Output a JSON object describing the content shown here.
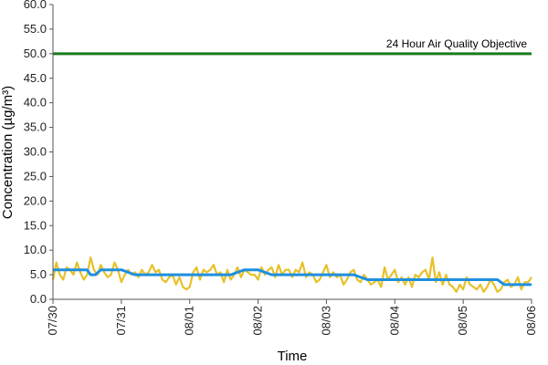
{
  "chart_data": {
    "type": "line",
    "title": "",
    "xlabel": "Time",
    "ylabel": "Concentration (µg/m³)",
    "ylim": [
      0,
      60
    ],
    "yticks": [
      "0.0",
      "5.0",
      "10.0",
      "15.0",
      "20.0",
      "25.0",
      "30.0",
      "35.0",
      "40.0",
      "45.0",
      "50.0",
      "55.0",
      "60.0"
    ],
    "xticks": [
      "07/30",
      "07/31",
      "08/01",
      "08/02",
      "08/03",
      "08/04",
      "08/05",
      "08/06"
    ],
    "xlim_days": [
      0,
      7
    ],
    "grid": false,
    "legend": "none",
    "annotation": {
      "text": "24 Hour Air Quality Objective"
    },
    "objective": {
      "value": 50.0,
      "color": "#1a7a1a"
    },
    "series": [
      {
        "color": "#e8c029",
        "x": [
          0.0,
          0.05,
          0.1,
          0.15,
          0.2,
          0.25,
          0.3,
          0.35,
          0.4,
          0.45,
          0.5,
          0.55,
          0.6,
          0.65,
          0.7,
          0.75,
          0.8,
          0.85,
          0.9,
          0.95,
          1.0,
          1.05,
          1.1,
          1.15,
          1.2,
          1.25,
          1.3,
          1.35,
          1.4,
          1.45,
          1.5,
          1.55,
          1.6,
          1.65,
          1.7,
          1.75,
          1.8,
          1.85,
          1.9,
          1.95,
          2.0,
          2.05,
          2.1,
          2.15,
          2.2,
          2.25,
          2.3,
          2.35,
          2.4,
          2.45,
          2.5,
          2.55,
          2.6,
          2.65,
          2.7,
          2.75,
          2.8,
          2.85,
          2.9,
          2.95,
          3.0,
          3.05,
          3.1,
          3.15,
          3.2,
          3.25,
          3.3,
          3.35,
          3.4,
          3.45,
          3.5,
          3.55,
          3.6,
          3.65,
          3.7,
          3.75,
          3.8,
          3.85,
          3.9,
          3.95,
          4.0,
          4.05,
          4.1,
          4.15,
          4.2,
          4.25,
          4.3,
          4.35,
          4.4,
          4.45,
          4.5,
          4.55,
          4.6,
          4.65,
          4.7,
          4.75,
          4.8,
          4.85,
          4.9,
          4.95,
          5.0,
          5.05,
          5.1,
          5.15,
          5.2,
          5.25,
          5.3,
          5.35,
          5.4,
          5.45,
          5.5,
          5.55,
          5.6,
          5.65,
          5.7,
          5.75,
          5.8,
          5.85,
          5.9,
          5.95,
          6.0,
          6.05,
          6.1,
          6.15,
          6.2,
          6.25,
          6.3,
          6.35,
          6.4,
          6.45,
          6.5,
          6.55,
          6.6,
          6.65,
          6.7,
          6.75,
          6.8,
          6.85,
          6.9,
          6.95,
          7.0
        ],
        "y": [
          4.0,
          7.5,
          5.0,
          4.0,
          6.5,
          6.0,
          5.0,
          7.5,
          5.5,
          4.0,
          5.0,
          8.5,
          6.0,
          5.0,
          7.0,
          5.5,
          4.5,
          5.0,
          7.5,
          6.0,
          3.5,
          5.0,
          6.0,
          5.0,
          5.5,
          4.5,
          6.0,
          5.0,
          5.5,
          7.0,
          5.5,
          6.0,
          4.0,
          3.5,
          4.5,
          5.0,
          3.0,
          4.5,
          2.5,
          2.0,
          2.5,
          5.5,
          6.5,
          4.0,
          6.0,
          5.5,
          6.0,
          7.0,
          5.0,
          5.5,
          3.5,
          6.0,
          4.0,
          5.0,
          6.5,
          4.5,
          6.0,
          5.5,
          5.0,
          5.0,
          4.0,
          6.5,
          5.0,
          6.0,
          6.5,
          4.5,
          7.0,
          5.0,
          6.0,
          6.0,
          4.5,
          6.0,
          5.5,
          7.5,
          4.5,
          5.5,
          5.0,
          3.5,
          4.0,
          5.5,
          7.0,
          4.5,
          5.5,
          4.5,
          5.0,
          3.0,
          4.0,
          5.5,
          6.0,
          4.0,
          3.5,
          5.0,
          4.0,
          3.0,
          3.5,
          4.0,
          2.5,
          6.5,
          4.0,
          5.0,
          6.0,
          3.5,
          4.5,
          3.0,
          4.5,
          2.5,
          5.0,
          4.5,
          5.5,
          6.0,
          4.0,
          8.5,
          3.5,
          5.5,
          3.0,
          5.0,
          3.0,
          2.5,
          1.5,
          3.0,
          2.0,
          4.5,
          3.0,
          2.5,
          2.0,
          3.0,
          1.5,
          2.5,
          4.0,
          3.0,
          1.5,
          2.0,
          3.5,
          4.0,
          2.5,
          3.0,
          4.5,
          2.0,
          3.5,
          3.5,
          4.5
        ]
      },
      {
        "color": "#1e8fe0",
        "x": [
          0.0,
          0.5,
          0.55,
          0.62,
          0.7,
          0.75,
          0.85,
          1.0,
          1.2,
          1.3,
          1.45,
          1.6,
          1.8,
          2.0,
          2.2,
          2.45,
          2.6,
          2.8,
          3.0,
          3.2,
          3.35,
          3.5,
          3.65,
          3.8,
          4.0,
          4.2,
          4.4,
          4.6,
          4.8,
          5.0,
          5.3,
          5.5,
          5.7,
          5.85,
          6.0,
          6.15,
          6.3,
          6.4,
          6.5,
          6.6,
          6.7,
          6.8,
          6.9,
          7.0
        ],
        "y": [
          6.0,
          6.0,
          5.0,
          5.0,
          6.0,
          6.0,
          6.0,
          6.0,
          5.0,
          5.0,
          5.0,
          5.0,
          5.0,
          5.0,
          5.0,
          5.0,
          5.0,
          6.0,
          6.0,
          5.0,
          5.0,
          5.0,
          5.0,
          5.0,
          5.0,
          5.0,
          5.0,
          4.0,
          4.0,
          4.0,
          4.0,
          4.0,
          4.0,
          4.0,
          4.0,
          4.0,
          4.0,
          4.0,
          4.0,
          3.0,
          3.0,
          3.0,
          3.0,
          3.0
        ]
      }
    ]
  }
}
